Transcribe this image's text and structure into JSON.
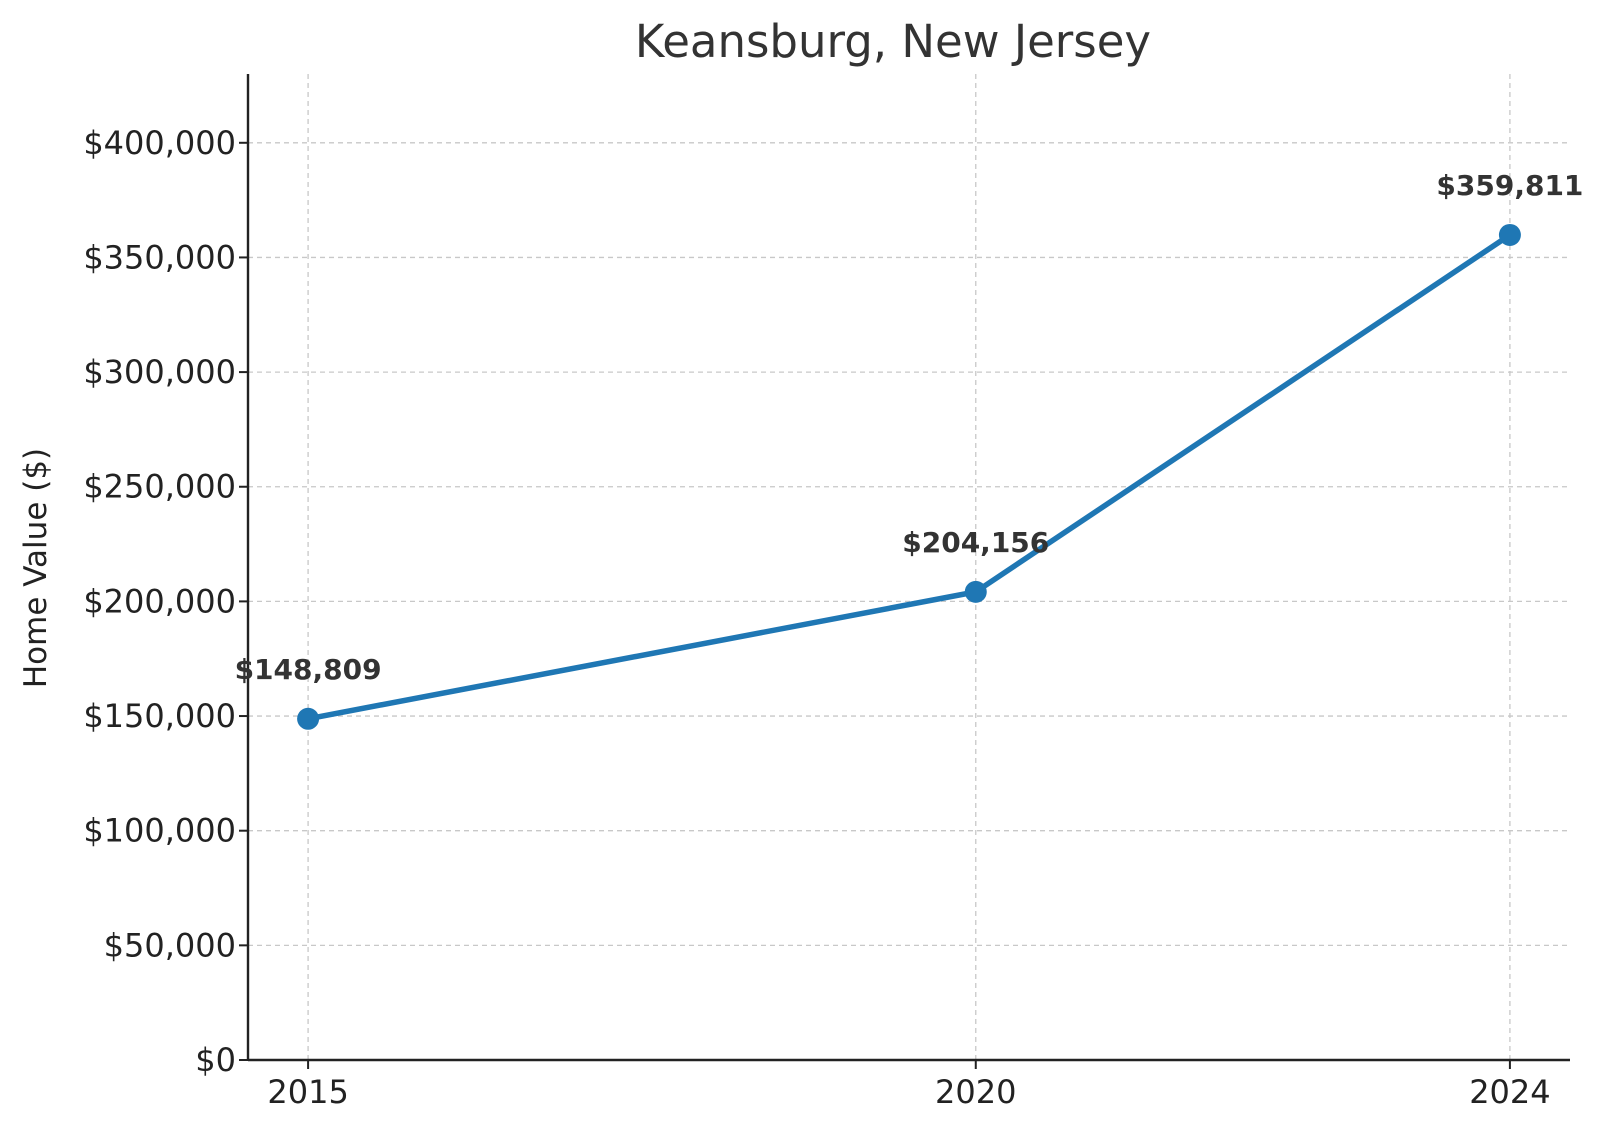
{
  "chart_data": {
    "type": "line",
    "title": "Keansburg, New Jersey",
    "xlabel": "",
    "ylabel": "Home Value ($)",
    "categories": [
      "2015",
      "2020",
      "2024"
    ],
    "x": [
      2015,
      2020,
      2024
    ],
    "series": [
      {
        "values": [
          148809,
          204156,
          359811
        ],
        "data_labels": [
          "$148,809",
          "$204,156",
          "$359,811"
        ]
      }
    ],
    "ylim": [
      0,
      430000
    ],
    "xlim": [
      2014.55,
      2024.45
    ],
    "yticks": [
      0,
      50000,
      100000,
      150000,
      200000,
      250000,
      300000,
      350000,
      400000
    ],
    "ytick_labels": [
      "$0",
      "$50,000",
      "$100,000",
      "$150,000",
      "$200,000",
      "$250,000",
      "$300,000",
      "$350,000",
      "$400,000"
    ],
    "grid": true,
    "colors": {
      "line": "#1f77b4",
      "grid": "#c8c8c8",
      "axis": "#222222",
      "text": "#333333"
    }
  }
}
